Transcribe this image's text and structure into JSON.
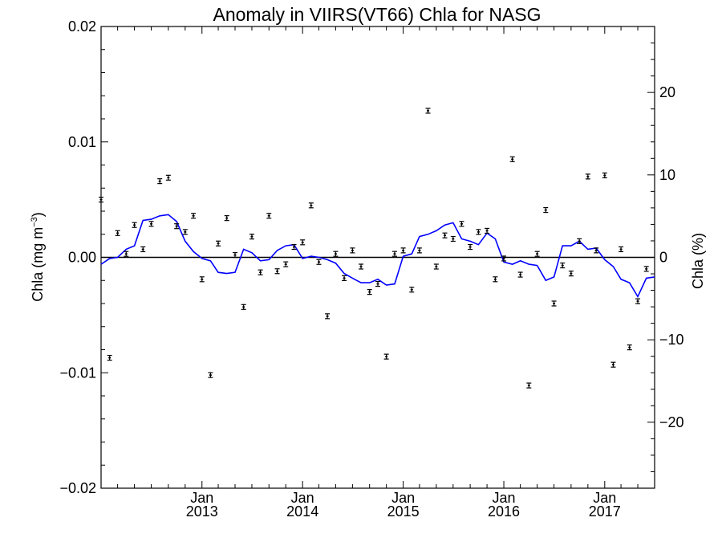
{
  "chart_data": {
    "type": "scatter",
    "title": "Anomaly in VIIRS(VT66) Chla for NASG",
    "ylabel_left_main": "Chla (mg m",
    "ylabel_left_sup": "−3",
    "ylabel_left_close": ")",
    "ylabel_right": "Chla (%)",
    "xlim": [
      "2012-01-01",
      "2017-07-01"
    ],
    "ylim_left": [
      -0.02,
      0.02
    ],
    "ylim_right": [
      -28,
      28
    ],
    "y_left_ticks": [
      {
        "value": -0.02,
        "label": "−0.02"
      },
      {
        "value": -0.01,
        "label": "−0.01"
      },
      {
        "value": 0.0,
        "label": "0.00"
      },
      {
        "value": 0.01,
        "label": "0.01"
      },
      {
        "value": 0.02,
        "label": "0.02"
      }
    ],
    "y_right_ticks": [
      {
        "value": -20,
        "label": "−20"
      },
      {
        "value": -10,
        "label": "−10"
      },
      {
        "value": 0,
        "label": "0"
      },
      {
        "value": 10,
        "label": "10"
      },
      {
        "value": 20,
        "label": "20"
      }
    ],
    "x_ticks": [
      {
        "date": "2013-01-01",
        "month": "Jan",
        "year": "2013"
      },
      {
        "date": "2014-01-01",
        "month": "Jan",
        "year": "2014"
      },
      {
        "date": "2015-01-01",
        "month": "Jan",
        "year": "2015"
      },
      {
        "date": "2016-01-01",
        "month": "Jan",
        "year": "2016"
      },
      {
        "date": "2017-01-01",
        "month": "Jan",
        "year": "2017"
      }
    ],
    "zero_line": true,
    "series": [
      {
        "kind": "points_with_error_bars",
        "color": "#000000",
        "points": [
          {
            "date": "2012-01-01",
            "y": 0.005
          },
          {
            "date": "2012-02-01",
            "y": -0.0087
          },
          {
            "date": "2012-03-01",
            "y": 0.0021
          },
          {
            "date": "2012-04-01",
            "y": 0.0003
          },
          {
            "date": "2012-05-01",
            "y": 0.0028
          },
          {
            "date": "2012-06-01",
            "y": 0.0007
          },
          {
            "date": "2012-07-01",
            "y": 0.0029
          },
          {
            "date": "2012-08-01",
            "y": 0.0066
          },
          {
            "date": "2012-09-01",
            "y": 0.0069
          },
          {
            "date": "2012-10-01",
            "y": 0.0027
          },
          {
            "date": "2012-11-01",
            "y": 0.0022
          },
          {
            "date": "2012-12-01",
            "y": 0.0036
          },
          {
            "date": "2013-01-01",
            "y": -0.0019
          },
          {
            "date": "2013-02-01",
            "y": -0.0102
          },
          {
            "date": "2013-03-01",
            "y": 0.0012
          },
          {
            "date": "2013-04-01",
            "y": 0.0034
          },
          {
            "date": "2013-05-01",
            "y": 0.0002
          },
          {
            "date": "2013-06-01",
            "y": -0.0043
          },
          {
            "date": "2013-07-01",
            "y": 0.0018
          },
          {
            "date": "2013-08-01",
            "y": -0.0013
          },
          {
            "date": "2013-09-01",
            "y": 0.0036
          },
          {
            "date": "2013-10-01",
            "y": -0.0012
          },
          {
            "date": "2013-11-01",
            "y": -0.0006
          },
          {
            "date": "2013-12-01",
            "y": 0.0009
          },
          {
            "date": "2014-01-01",
            "y": 0.0013
          },
          {
            "date": "2014-02-01",
            "y": 0.0045
          },
          {
            "date": "2014-03-01",
            "y": -0.0004
          },
          {
            "date": "2014-04-01",
            "y": -0.0051
          },
          {
            "date": "2014-05-01",
            "y": 0.0003
          },
          {
            "date": "2014-06-01",
            "y": -0.0018
          },
          {
            "date": "2014-07-01",
            "y": 0.0006
          },
          {
            "date": "2014-08-01",
            "y": -0.0008
          },
          {
            "date": "2014-09-01",
            "y": -0.003
          },
          {
            "date": "2014-10-01",
            "y": -0.0023
          },
          {
            "date": "2014-11-01",
            "y": -0.0086
          },
          {
            "date": "2014-12-01",
            "y": 0.0003
          },
          {
            "date": "2015-01-01",
            "y": 0.0006
          },
          {
            "date": "2015-02-01",
            "y": -0.0028
          },
          {
            "date": "2015-03-01",
            "y": 0.0006
          },
          {
            "date": "2015-04-01",
            "y": 0.0127
          },
          {
            "date": "2015-05-01",
            "y": -0.0008
          },
          {
            "date": "2015-06-01",
            "y": 0.0019
          },
          {
            "date": "2015-07-01",
            "y": 0.0016
          },
          {
            "date": "2015-08-01",
            "y": 0.0029
          },
          {
            "date": "2015-09-01",
            "y": 0.0009
          },
          {
            "date": "2015-10-01",
            "y": 0.0022
          },
          {
            "date": "2015-11-01",
            "y": 0.0023
          },
          {
            "date": "2015-12-01",
            "y": -0.0019
          },
          {
            "date": "2016-01-01",
            "y": -0.0001
          },
          {
            "date": "2016-02-01",
            "y": 0.0085
          },
          {
            "date": "2016-03-01",
            "y": -0.0015
          },
          {
            "date": "2016-04-01",
            "y": -0.0111
          },
          {
            "date": "2016-05-01",
            "y": 0.0003
          },
          {
            "date": "2016-06-01",
            "y": 0.0041
          },
          {
            "date": "2016-07-01",
            "y": -0.004
          },
          {
            "date": "2016-08-01",
            "y": -0.0007
          },
          {
            "date": "2016-09-01",
            "y": -0.0014
          },
          {
            "date": "2016-10-01",
            "y": 0.0014
          },
          {
            "date": "2016-11-01",
            "y": 0.007
          },
          {
            "date": "2016-12-01",
            "y": 0.0006
          },
          {
            "date": "2017-01-01",
            "y": 0.0071
          },
          {
            "date": "2017-02-01",
            "y": -0.0093
          },
          {
            "date": "2017-03-01",
            "y": 0.0007
          },
          {
            "date": "2017-04-01",
            "y": -0.0078
          },
          {
            "date": "2017-05-01",
            "y": -0.0038
          },
          {
            "date": "2017-06-01",
            "y": -0.001
          }
        ]
      },
      {
        "kind": "line",
        "color": "#0000ff",
        "points": [
          {
            "date": "2012-01-01",
            "y": -0.0006
          },
          {
            "date": "2012-02-01",
            "y": -0.0001
          },
          {
            "date": "2012-03-01",
            "y": 0.0
          },
          {
            "date": "2012-04-01",
            "y": 0.0007
          },
          {
            "date": "2012-05-01",
            "y": 0.001
          },
          {
            "date": "2012-06-01",
            "y": 0.0032
          },
          {
            "date": "2012-07-01",
            "y": 0.0033
          },
          {
            "date": "2012-08-01",
            "y": 0.0036
          },
          {
            "date": "2012-09-01",
            "y": 0.0037
          },
          {
            "date": "2012-10-01",
            "y": 0.0031
          },
          {
            "date": "2012-11-01",
            "y": 0.0014
          },
          {
            "date": "2012-12-01",
            "y": 0.0005
          },
          {
            "date": "2013-01-01",
            "y": -0.0001
          },
          {
            "date": "2013-02-01",
            "y": -0.0003
          },
          {
            "date": "2013-03-01",
            "y": -0.0013
          },
          {
            "date": "2013-04-01",
            "y": -0.0014
          },
          {
            "date": "2013-05-01",
            "y": -0.0013
          },
          {
            "date": "2013-06-01",
            "y": 0.0007
          },
          {
            "date": "2013-07-01",
            "y": 0.0004
          },
          {
            "date": "2013-08-01",
            "y": -0.0003
          },
          {
            "date": "2013-09-01",
            "y": -0.0002
          },
          {
            "date": "2013-10-01",
            "y": 0.0006
          },
          {
            "date": "2013-11-01",
            "y": 0.001
          },
          {
            "date": "2013-12-01",
            "y": 0.0011
          },
          {
            "date": "2014-01-01",
            "y": -0.0001
          },
          {
            "date": "2014-02-01",
            "y": 0.0001
          },
          {
            "date": "2014-03-01",
            "y": 0.0
          },
          {
            "date": "2014-04-01",
            "y": -0.0002
          },
          {
            "date": "2014-05-01",
            "y": -0.0005
          },
          {
            "date": "2014-06-01",
            "y": -0.0014
          },
          {
            "date": "2014-07-01",
            "y": -0.0018
          },
          {
            "date": "2014-08-01",
            "y": -0.0022
          },
          {
            "date": "2014-09-01",
            "y": -0.0022
          },
          {
            "date": "2014-10-01",
            "y": -0.0019
          },
          {
            "date": "2014-11-01",
            "y": -0.0024
          },
          {
            "date": "2014-12-01",
            "y": -0.0023
          },
          {
            "date": "2015-01-01",
            "y": 0.0001
          },
          {
            "date": "2015-02-01",
            "y": 0.0003
          },
          {
            "date": "2015-03-01",
            "y": 0.0018
          },
          {
            "date": "2015-04-01",
            "y": 0.002
          },
          {
            "date": "2015-05-01",
            "y": 0.0023
          },
          {
            "date": "2015-06-01",
            "y": 0.0028
          },
          {
            "date": "2015-07-01",
            "y": 0.003
          },
          {
            "date": "2015-08-01",
            "y": 0.0016
          },
          {
            "date": "2015-09-01",
            "y": 0.0014
          },
          {
            "date": "2015-10-01",
            "y": 0.0011
          },
          {
            "date": "2015-11-01",
            "y": 0.0021
          },
          {
            "date": "2015-12-01",
            "y": 0.0016
          },
          {
            "date": "2016-01-01",
            "y": -0.0004
          },
          {
            "date": "2016-02-01",
            "y": -0.0006
          },
          {
            "date": "2016-03-01",
            "y": -0.0003
          },
          {
            "date": "2016-04-01",
            "y": -0.0006
          },
          {
            "date": "2016-05-01",
            "y": -0.0007
          },
          {
            "date": "2016-06-01",
            "y": -0.002
          },
          {
            "date": "2016-07-01",
            "y": -0.0017
          },
          {
            "date": "2016-08-01",
            "y": 0.001
          },
          {
            "date": "2016-09-01",
            "y": 0.001
          },
          {
            "date": "2016-10-01",
            "y": 0.0014
          },
          {
            "date": "2016-11-01",
            "y": 0.0007
          },
          {
            "date": "2016-12-01",
            "y": 0.0008
          },
          {
            "date": "2017-01-01",
            "y": -0.0002
          },
          {
            "date": "2017-02-01",
            "y": -0.0008
          },
          {
            "date": "2017-03-01",
            "y": -0.0019
          },
          {
            "date": "2017-04-01",
            "y": -0.0022
          },
          {
            "date": "2017-05-01",
            "y": -0.0034
          },
          {
            "date": "2017-06-01",
            "y": -0.0018
          },
          {
            "date": "2017-07-01",
            "y": -0.0017
          }
        ]
      }
    ]
  }
}
